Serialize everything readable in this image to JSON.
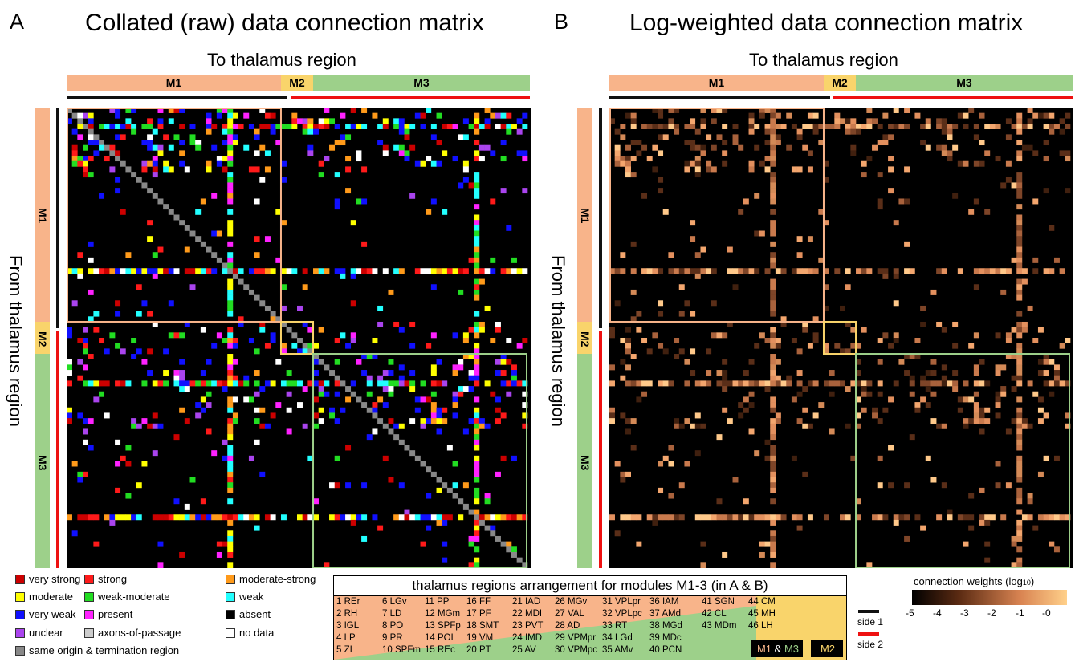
{
  "panels": [
    {
      "letter": "A",
      "title": "Collated (raw) data connection matrix"
    },
    {
      "letter": "B",
      "title": "Log-weighted data connection matrix"
    }
  ],
  "axes": {
    "x": "To thalamus region",
    "y": "From thalamus region"
  },
  "modules": [
    "M1",
    "M2",
    "M3"
  ],
  "colors": {
    "M1": "#f8b48a",
    "M2": "#f9d46b",
    "M3": "#9dd08a",
    "side1": "#111111",
    "side2": "#ee1111"
  },
  "legend_a": [
    {
      "label": "very strong",
      "color": "#cc0000"
    },
    {
      "label": "strong",
      "color": "#ff1a1a"
    },
    {
      "label": "moderate-strong",
      "color": "#ff9a1a"
    },
    {
      "label": "moderate",
      "color": "#ffff00"
    },
    {
      "label": "weak-moderate",
      "color": "#22dd22"
    },
    {
      "label": "weak",
      "color": "#22ffff"
    },
    {
      "label": "very weak",
      "color": "#1010ff"
    },
    {
      "label": "present",
      "color": "#ff22ff"
    },
    {
      "label": "absent",
      "color": "#000000"
    },
    {
      "label": "unclear",
      "color": "#aa44ee"
    },
    {
      "label": "axons-of-passage",
      "color": "#cccccc"
    },
    {
      "label": "no data",
      "color": "#ffffff"
    },
    {
      "label": "same origin & termination region",
      "color": "#888888"
    }
  ],
  "arrangement": {
    "title": "thalamus regions arrangement for modules M1-3 (in A & B)",
    "regions": [
      "1 REr",
      "2 RH",
      "3 IGL",
      "4 LP",
      "5 ZI",
      "6 LGv",
      "7 LD",
      "8 PO",
      "9 PR",
      "10 SPFm",
      "11 PP",
      "12 MGm",
      "13 SPFp",
      "14 POL",
      "15 REc",
      "16 FF",
      "17 PF",
      "18 SMT",
      "19 VM",
      "20 PT",
      "21 IAD",
      "22 MDI",
      "23 PVT",
      "24 IMD",
      "25 AV",
      "26 MGv",
      "27 VAL",
      "28 AD",
      "29 VPMpr",
      "30 VPMpc",
      "31 VPLpr",
      "32 VPLpc",
      "33 RT",
      "34 LGd",
      "35 AMv",
      "36 IAM",
      "37 AMd",
      "38 MGd",
      "39 MDc",
      "40 PCN",
      "41 SGN",
      "42 CL",
      "43 MDm",
      "44 CM",
      "45 MH",
      "46 LH"
    ],
    "key_m1m3": [
      "M1",
      "&",
      "M3"
    ],
    "key_m2": "M2"
  },
  "colorbar": {
    "title_main": "connection weights (log",
    "title_sub": "10",
    "title_end": ")",
    "ticks": [
      "-5",
      "-4",
      "-3",
      "-2",
      "-1",
      "-0"
    ]
  },
  "sides": [
    "side 1",
    "side 2"
  ],
  "chart_data": [
    {
      "type": "heatmap",
      "title": "Collated (raw) data connection matrix",
      "xlabel": "To thalamus region",
      "ylabel": "From thalamus region",
      "module_sizes": {
        "M1": 40,
        "M2": 6,
        "M3": 40
      },
      "categories": [
        "very strong",
        "strong",
        "moderate-strong",
        "moderate",
        "weak-moderate",
        "weak",
        "very weak",
        "present",
        "absent",
        "unclear",
        "axons-of-passage",
        "no data",
        "same origin & termination region"
      ]
    },
    {
      "type": "heatmap",
      "title": "Log-weighted data connection matrix",
      "xlabel": "To thalamus region",
      "ylabel": "From thalamus region",
      "module_sizes": {
        "M1": 40,
        "M2": 6,
        "M3": 40
      },
      "colorbar_range": [
        -5,
        0
      ]
    }
  ]
}
